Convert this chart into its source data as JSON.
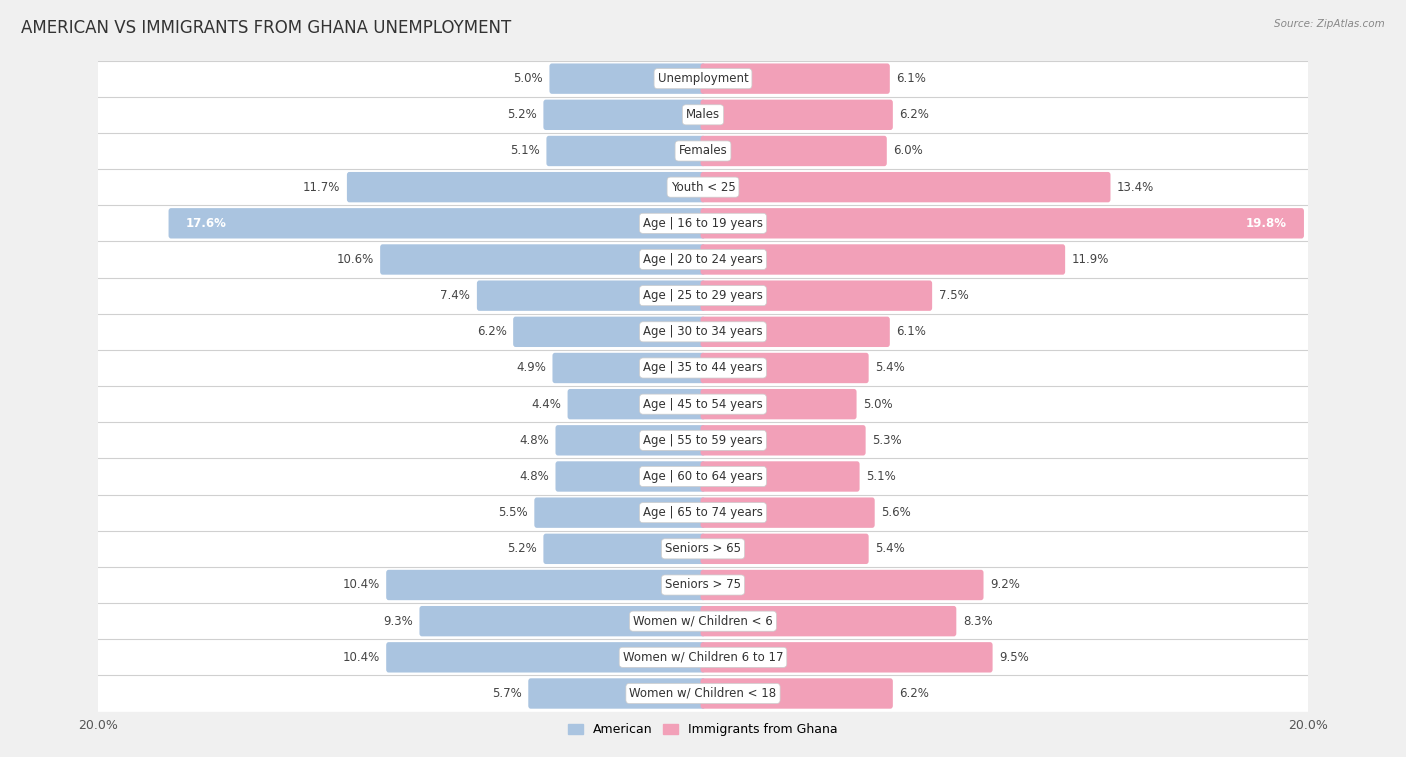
{
  "title": "AMERICAN VS IMMIGRANTS FROM GHANA UNEMPLOYMENT",
  "source": "Source: ZipAtlas.com",
  "categories": [
    "Unemployment",
    "Males",
    "Females",
    "Youth < 25",
    "Age | 16 to 19 years",
    "Age | 20 to 24 years",
    "Age | 25 to 29 years",
    "Age | 30 to 34 years",
    "Age | 35 to 44 years",
    "Age | 45 to 54 years",
    "Age | 55 to 59 years",
    "Age | 60 to 64 years",
    "Age | 65 to 74 years",
    "Seniors > 65",
    "Seniors > 75",
    "Women w/ Children < 6",
    "Women w/ Children 6 to 17",
    "Women w/ Children < 18"
  ],
  "american": [
    5.0,
    5.2,
    5.1,
    11.7,
    17.6,
    10.6,
    7.4,
    6.2,
    4.9,
    4.4,
    4.8,
    4.8,
    5.5,
    5.2,
    10.4,
    9.3,
    10.4,
    5.7
  ],
  "ghana": [
    6.1,
    6.2,
    6.0,
    13.4,
    19.8,
    11.9,
    7.5,
    6.1,
    5.4,
    5.0,
    5.3,
    5.1,
    5.6,
    5.4,
    9.2,
    8.3,
    9.5,
    6.2
  ],
  "american_color": "#aac4e0",
  "ghana_color": "#f2a0b8",
  "row_color_odd": "#f5f5f5",
  "row_color_even": "#e8e8e8",
  "background_color": "#f0f0f0",
  "xlim": 20.0,
  "legend_american": "American",
  "legend_ghana": "Immigrants from Ghana",
  "bar_height": 0.68,
  "title_fontsize": 12,
  "label_fontsize": 8.5,
  "value_fontsize": 8.5,
  "tick_fontsize": 9,
  "white_text_threshold": 14.0
}
